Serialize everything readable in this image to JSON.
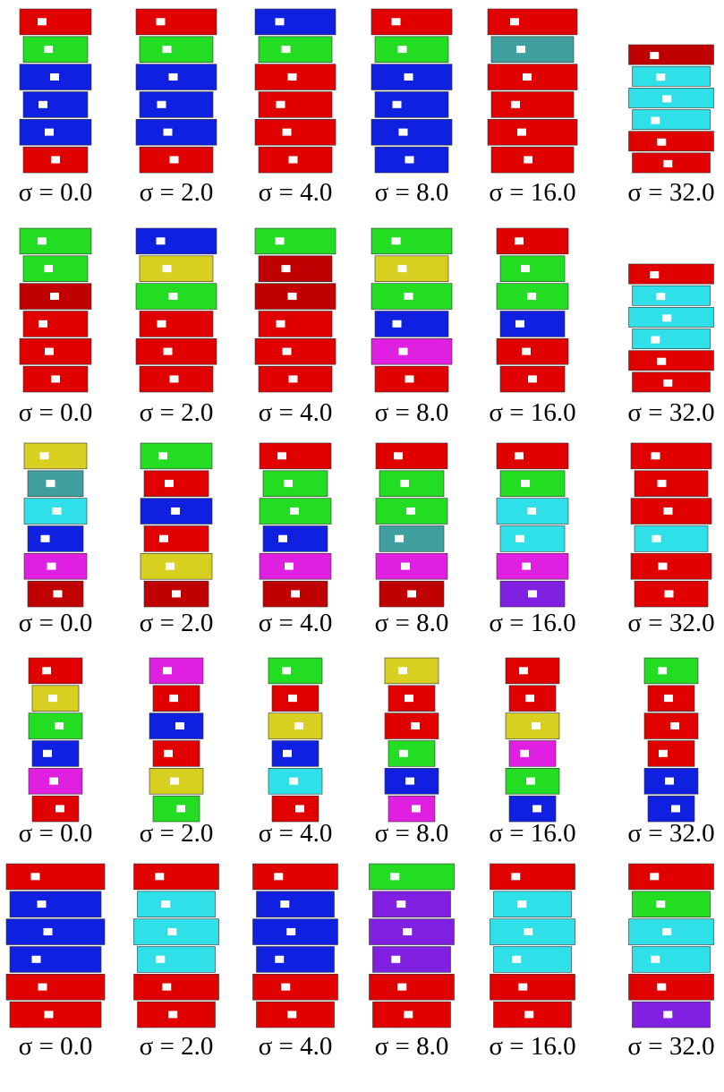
{
  "rows": [
    {
      "captions": [
        "σ = 0.0",
        "σ = 2.0",
        "σ = 4.0",
        "σ = 8.0",
        "σ = 16.0",
        "σ = 32.0"
      ]
    },
    {
      "captions": [
        "σ = 0.0",
        "σ = 2.0",
        "σ = 4.0",
        "σ = 8.0",
        "σ = 16.0",
        "σ = 32.0"
      ]
    },
    {
      "captions": [
        "σ = 0.0",
        "σ = 2.0",
        "σ = 4.0",
        "σ = 8.0",
        "σ = 16.0",
        "σ = 32.0"
      ]
    },
    {
      "captions": [
        "σ = 0.0",
        "σ = 2.0",
        "σ = 4.0",
        "σ = 8.0",
        "σ = 16.0",
        "σ = 32.0"
      ]
    },
    {
      "captions": [
        "σ = 0.0",
        "σ = 2.0",
        "σ = 4.0",
        "σ = 8.0",
        "σ = 16.0",
        "σ = 32.0"
      ]
    }
  ]
}
